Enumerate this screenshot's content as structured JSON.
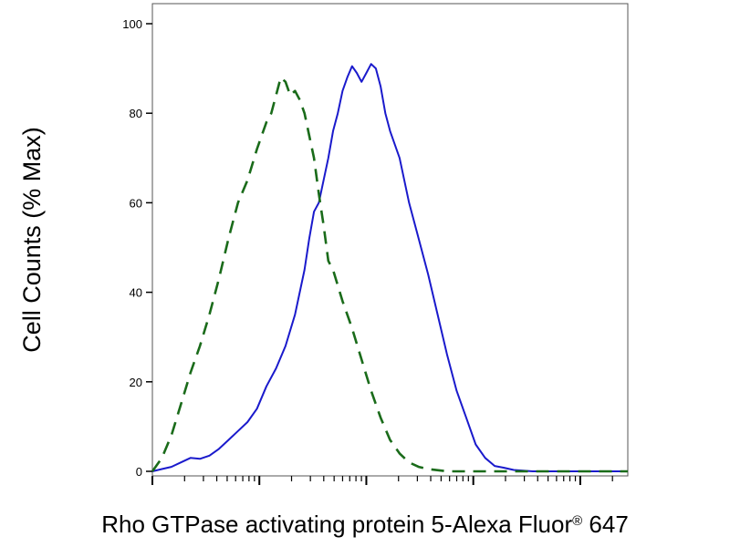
{
  "chart_data": {
    "type": "line",
    "title": "",
    "xlabel": "Rho GTPase activating protein 5-Alexa Fluor",
    "xlabel_superscript": "®",
    "xlabel_suffix": " 647",
    "ylabel": "Cell Counts (% Max)",
    "x_scale": "log",
    "ylim": [
      0,
      100
    ],
    "y_ticks": [
      0,
      20,
      40,
      60,
      80,
      100
    ],
    "y_tick_labels": [
      "0",
      "20",
      "40",
      "60",
      "80",
      "100"
    ],
    "x_tick_labels": [],
    "grid": false,
    "legend": "none",
    "series": [
      {
        "color": "#1a1acc",
        "style": "solid",
        "points": [
          [
            0.0,
            0
          ],
          [
            0.02,
            0.5
          ],
          [
            0.04,
            1
          ],
          [
            0.06,
            2
          ],
          [
            0.08,
            3
          ],
          [
            0.1,
            2.8
          ],
          [
            0.12,
            3.5
          ],
          [
            0.14,
            5
          ],
          [
            0.16,
            7
          ],
          [
            0.18,
            9
          ],
          [
            0.2,
            11
          ],
          [
            0.22,
            14
          ],
          [
            0.24,
            19
          ],
          [
            0.26,
            23
          ],
          [
            0.28,
            28
          ],
          [
            0.3,
            35
          ],
          [
            0.32,
            45
          ],
          [
            0.33,
            52
          ],
          [
            0.34,
            58
          ],
          [
            0.35,
            60
          ],
          [
            0.36,
            65
          ],
          [
            0.37,
            70
          ],
          [
            0.38,
            76
          ],
          [
            0.39,
            80
          ],
          [
            0.4,
            85
          ],
          [
            0.41,
            88
          ],
          [
            0.42,
            90.5
          ],
          [
            0.43,
            89
          ],
          [
            0.44,
            87
          ],
          [
            0.45,
            89
          ],
          [
            0.46,
            91
          ],
          [
            0.47,
            90
          ],
          [
            0.48,
            86
          ],
          [
            0.49,
            80
          ],
          [
            0.5,
            76
          ],
          [
            0.52,
            70
          ],
          [
            0.54,
            60
          ],
          [
            0.56,
            52
          ],
          [
            0.58,
            44
          ],
          [
            0.6,
            35
          ],
          [
            0.62,
            26
          ],
          [
            0.64,
            18
          ],
          [
            0.66,
            12
          ],
          [
            0.68,
            6
          ],
          [
            0.7,
            3
          ],
          [
            0.72,
            1.2
          ],
          [
            0.74,
            0.8
          ],
          [
            0.76,
            0.3
          ],
          [
            0.8,
            0
          ],
          [
            1.0,
            0
          ]
        ]
      },
      {
        "color": "#1a6b1a",
        "style": "dashed",
        "points": [
          [
            0.0,
            0
          ],
          [
            0.02,
            3
          ],
          [
            0.04,
            8
          ],
          [
            0.06,
            15
          ],
          [
            0.08,
            22
          ],
          [
            0.1,
            28
          ],
          [
            0.12,
            35
          ],
          [
            0.14,
            43
          ],
          [
            0.16,
            52
          ],
          [
            0.18,
            60
          ],
          [
            0.2,
            65
          ],
          [
            0.22,
            72
          ],
          [
            0.24,
            78
          ],
          [
            0.25,
            80
          ],
          [
            0.26,
            84
          ],
          [
            0.27,
            88
          ],
          [
            0.28,
            87
          ],
          [
            0.29,
            84
          ],
          [
            0.3,
            85
          ],
          [
            0.31,
            83
          ],
          [
            0.32,
            80
          ],
          [
            0.33,
            75
          ],
          [
            0.34,
            70
          ],
          [
            0.35,
            62
          ],
          [
            0.36,
            55
          ],
          [
            0.37,
            47
          ],
          [
            0.38,
            45
          ],
          [
            0.4,
            38
          ],
          [
            0.42,
            32
          ],
          [
            0.44,
            25
          ],
          [
            0.46,
            18
          ],
          [
            0.48,
            12
          ],
          [
            0.5,
            7
          ],
          [
            0.52,
            4
          ],
          [
            0.54,
            2
          ],
          [
            0.56,
            1
          ],
          [
            0.58,
            0.5
          ],
          [
            0.62,
            0
          ],
          [
            1.0,
            0
          ]
        ]
      }
    ]
  }
}
